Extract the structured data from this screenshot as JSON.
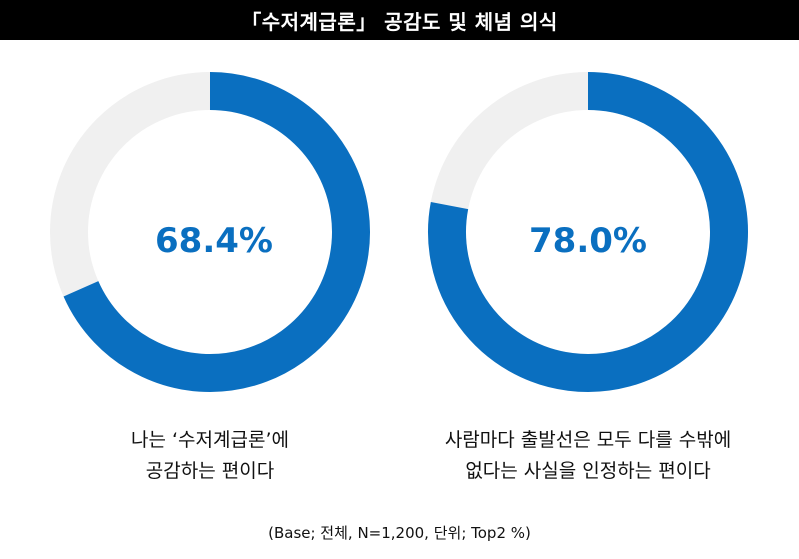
{
  "title": "「수저계급론」 공감도 및 체념 의식",
  "footnote": "(Base; 전체, N=1,200, 단위; Top2 %)",
  "colors": {
    "fill": "#0a6fc0",
    "track": "#f0f0f0",
    "title_bg": "#000000",
    "value_text": "#0a6fc0"
  },
  "chart_data": [
    {
      "type": "pie",
      "variant": "donut",
      "value": 68.4,
      "value_label": "68.4%",
      "caption": [
        "나는 ‘수저계급론’에",
        "공감하는 편이다"
      ]
    },
    {
      "type": "pie",
      "variant": "donut",
      "value": 78.0,
      "value_label": "78.0%",
      "caption": [
        "사람마다 출발선은 모두 다를 수밖에",
        "없다는 사실을 인정하는 편이다"
      ]
    }
  ]
}
